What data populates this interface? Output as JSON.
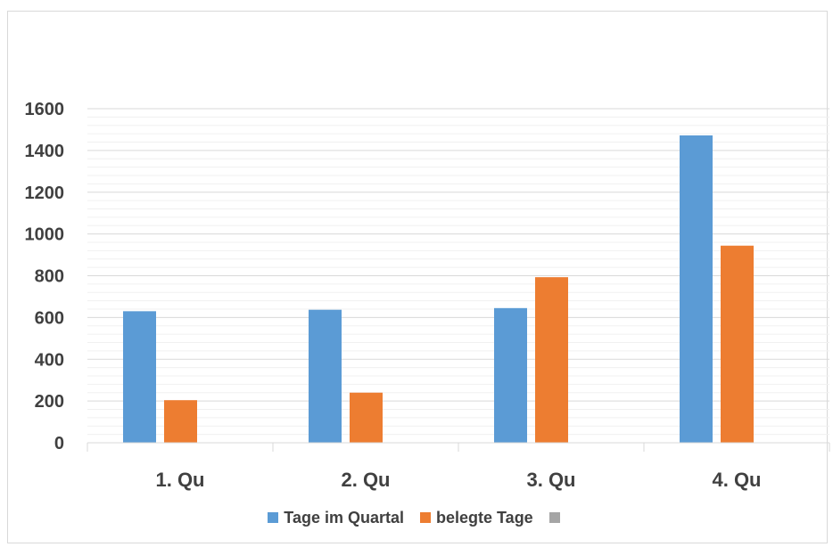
{
  "chart_data": {
    "type": "bar",
    "title": "",
    "xlabel": "",
    "ylabel": "",
    "categories": [
      "1. Qu",
      "2. Qu",
      "3. Qu",
      "4. Qu"
    ],
    "series": [
      {
        "name": "Tage im Quartal",
        "color": "#5b9bd5",
        "values": [
          630,
          637,
          645,
          1472
        ]
      },
      {
        "name": "belegte Tage",
        "color": "#ed7d31",
        "values": [
          204,
          240,
          793,
          944
        ]
      },
      {
        "name": "",
        "color": "#a5a5a5",
        "values": [
          0,
          0,
          0,
          0
        ]
      }
    ],
    "ylim": [
      0,
      1600
    ],
    "yticks": [
      0,
      200,
      400,
      600,
      800,
      1000,
      1200,
      1400,
      1600
    ],
    "grid": true,
    "legend": "bottom"
  }
}
